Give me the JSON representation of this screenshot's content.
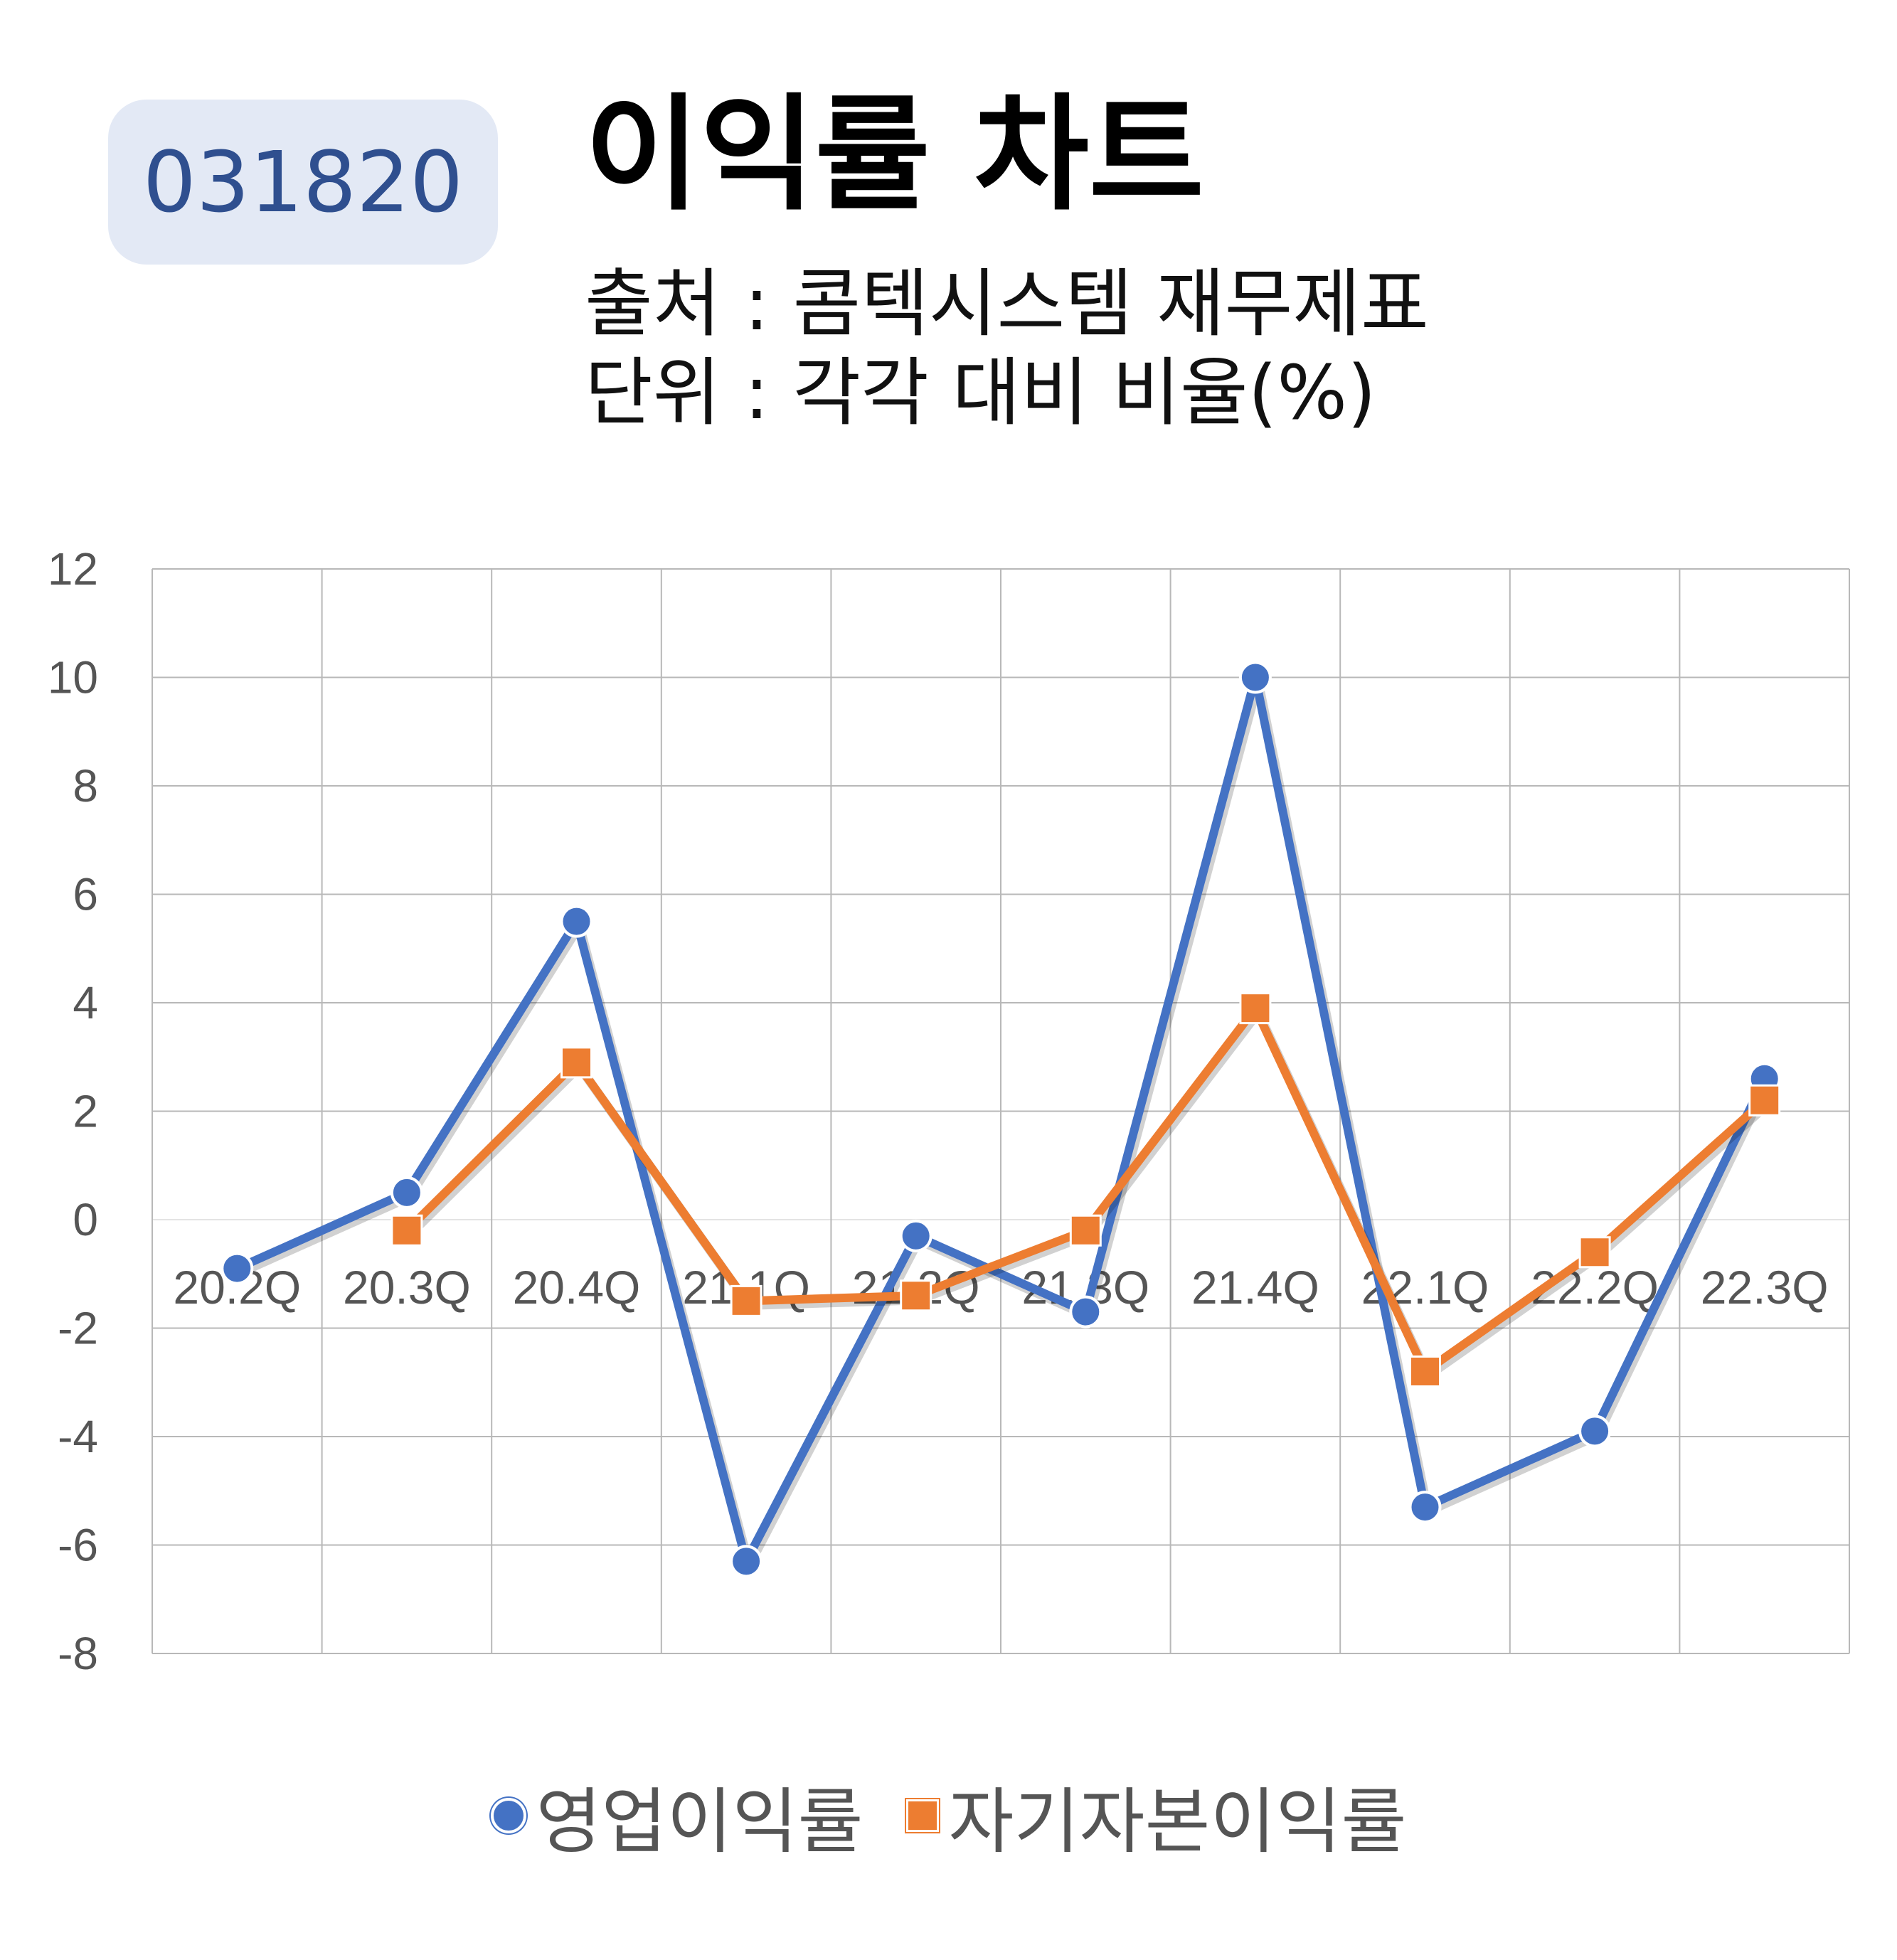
{
  "header": {
    "code": "031820",
    "title": "이익률 차트",
    "source": "출처 : 콤텍시스템 재무제표",
    "unit": "단위 : 각각 대비 비율(%)"
  },
  "chart_data": {
    "type": "line",
    "categories": [
      "20.2Q",
      "20.3Q",
      "20.4Q",
      "21.1Q",
      "21.2Q",
      "21.3Q",
      "21.4Q",
      "22.1Q",
      "22.2Q",
      "22.3Q"
    ],
    "series": [
      {
        "name": "영업이익률",
        "color": "#4472c4",
        "marker": "circle",
        "values": [
          -0.9,
          0.5,
          5.5,
          -6.3,
          -0.3,
          -1.7,
          10.0,
          -5.3,
          -3.9,
          2.6
        ]
      },
      {
        "name": "자기자본이익률",
        "color": "#ed7d31",
        "marker": "square",
        "values": [
          null,
          -0.2,
          2.9,
          -1.5,
          -1.4,
          -0.2,
          3.9,
          -2.8,
          -0.6,
          2.2
        ]
      }
    ],
    "yticks": [
      "12",
      "10",
      "8",
      "6",
      "4",
      "2",
      "0",
      "-2",
      "-4",
      "-6",
      "-8"
    ],
    "ylim": [
      -8,
      12
    ],
    "ytick_step": 2,
    "grid": true,
    "legend_position": "bottom"
  },
  "colors": {
    "badge_bg": "#e3e9f5",
    "badge_text": "#2f4f8f",
    "grid": "#b8b8b8",
    "axis_text": "#555555"
  }
}
